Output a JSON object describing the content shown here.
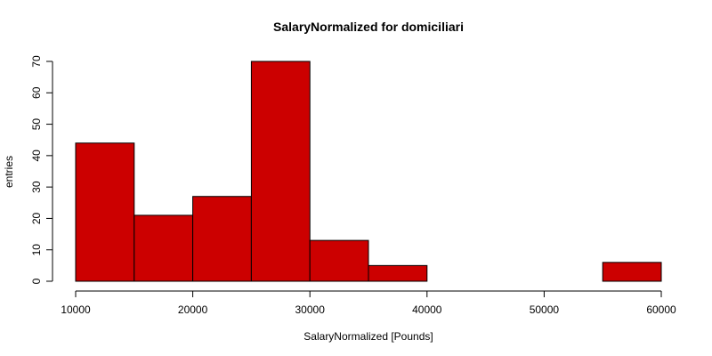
{
  "chart_data": {
    "type": "bar",
    "title": "SalaryNormalized for domiciliari",
    "xlabel": "SalaryNormalized [Pounds]",
    "ylabel": "entries",
    "bar_color": "#cc0000",
    "bar_stroke": "#000000",
    "bins": [
      {
        "start": 10000,
        "end": 15000,
        "count": 44
      },
      {
        "start": 15000,
        "end": 20000,
        "count": 21
      },
      {
        "start": 20000,
        "end": 25000,
        "count": 27
      },
      {
        "start": 25000,
        "end": 30000,
        "count": 70
      },
      {
        "start": 30000,
        "end": 35000,
        "count": 13
      },
      {
        "start": 35000,
        "end": 40000,
        "count": 5
      },
      {
        "start": 40000,
        "end": 45000,
        "count": 0
      },
      {
        "start": 45000,
        "end": 50000,
        "count": 0
      },
      {
        "start": 50000,
        "end": 55000,
        "count": 0
      },
      {
        "start": 55000,
        "end": 60000,
        "count": 6
      }
    ],
    "xlim": [
      10000,
      60000
    ],
    "ylim": [
      0,
      70
    ],
    "x_ticks": [
      "10000",
      "20000",
      "30000",
      "40000",
      "50000",
      "60000"
    ],
    "y_ticks": [
      "0",
      "10",
      "20",
      "30",
      "40",
      "50",
      "60",
      "70"
    ],
    "grid": false,
    "legend": "none"
  }
}
